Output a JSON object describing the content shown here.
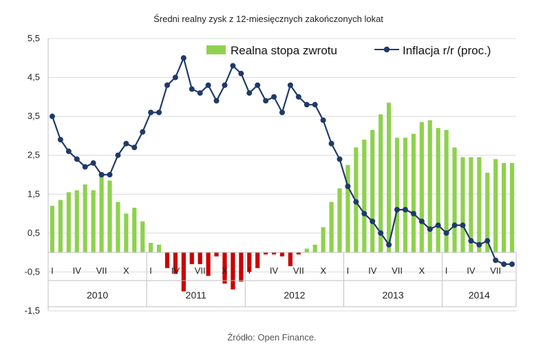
{
  "chart_data": {
    "type": "bar+line",
    "title": "Średni realny zysk z 12-miesięcznych zakończonych lokat",
    "source": "Źródło: Open Finance.",
    "ylim": [
      -1.5,
      5.5
    ],
    "yticks": [
      "5,5",
      "4,5",
      "3,5",
      "2,5",
      "1,5",
      "0,5",
      "-0,5",
      "-1,5"
    ],
    "ytick_values": [
      5.5,
      4.5,
      3.5,
      2.5,
      1.5,
      0.5,
      -0.5,
      -1.5
    ],
    "month_labels": [
      {
        "index": 0,
        "label": "I"
      },
      {
        "index": 3,
        "label": "IV"
      },
      {
        "index": 6,
        "label": "VII"
      },
      {
        "index": 9,
        "label": "X"
      },
      {
        "index": 12,
        "label": "I"
      },
      {
        "index": 15,
        "label": "IV"
      },
      {
        "index": 18,
        "label": "VII"
      },
      {
        "index": 21,
        "label": "X"
      },
      {
        "index": 24,
        "label": "I"
      },
      {
        "index": 27,
        "label": "IV"
      },
      {
        "index": 30,
        "label": "VII"
      },
      {
        "index": 33,
        "label": "X"
      },
      {
        "index": 36,
        "label": "I"
      },
      {
        "index": 39,
        "label": "IV"
      },
      {
        "index": 42,
        "label": "VII"
      },
      {
        "index": 45,
        "label": "X"
      },
      {
        "index": 48,
        "label": "I"
      },
      {
        "index": 51,
        "label": "IV"
      },
      {
        "index": 54,
        "label": "VII"
      }
    ],
    "years": [
      {
        "label": "2010",
        "start": 0,
        "end": 12
      },
      {
        "label": "2011",
        "start": 12,
        "end": 24
      },
      {
        "label": "2012",
        "start": 24,
        "end": 36
      },
      {
        "label": "2013",
        "start": 36,
        "end": 48
      },
      {
        "label": "2014",
        "start": 48,
        "end": 57
      }
    ],
    "series": [
      {
        "name": "Realna stopa zwrotu",
        "kind": "bar",
        "color_positive": "#8fd14f",
        "color_negative": "#cc0000",
        "values": [
          1.2,
          1.35,
          1.55,
          1.6,
          1.75,
          1.6,
          1.95,
          1.85,
          1.3,
          1.0,
          1.15,
          0.8,
          0.25,
          0.2,
          -0.4,
          -0.55,
          -1.0,
          -0.3,
          -0.3,
          -0.6,
          -0.1,
          -0.8,
          -0.95,
          -0.75,
          -0.5,
          -0.4,
          -0.05,
          -0.05,
          -0.1,
          -0.35,
          -0.05,
          0.1,
          0.2,
          0.65,
          1.3,
          1.65,
          2.25,
          2.7,
          2.9,
          3.15,
          3.55,
          3.85,
          2.95,
          2.95,
          3.05,
          3.35,
          3.4,
          3.2,
          3.15,
          2.7,
          2.45,
          2.45,
          2.45,
          2.05,
          2.4,
          2.3,
          2.3
        ]
      },
      {
        "name": "Inflacja r/r (proc.)",
        "kind": "line",
        "color": "#1f3a68",
        "values": [
          3.5,
          2.9,
          2.6,
          2.4,
          2.2,
          2.3,
          2.0,
          2.0,
          2.5,
          2.8,
          2.7,
          3.1,
          3.6,
          3.6,
          4.3,
          4.5,
          5.0,
          4.2,
          4.1,
          4.3,
          3.9,
          4.3,
          4.8,
          4.6,
          4.1,
          4.3,
          3.9,
          4.0,
          3.6,
          4.3,
          4.0,
          3.8,
          3.8,
          3.4,
          2.8,
          2.4,
          1.7,
          1.3,
          1.0,
          0.8,
          0.5,
          0.2,
          1.1,
          1.1,
          1.0,
          0.8,
          0.6,
          0.7,
          0.5,
          0.7,
          0.7,
          0.3,
          0.2,
          0.3,
          -0.2,
          -0.3,
          -0.3
        ]
      }
    ]
  }
}
